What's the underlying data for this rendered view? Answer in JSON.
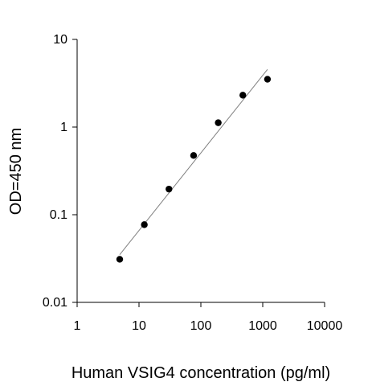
{
  "chart_data": {
    "type": "scatter",
    "title": "",
    "xlabel": "Human VSIG4 concentration (pg/ml)",
    "ylabel": "OD=450 nm",
    "x_scale": "log",
    "y_scale": "log",
    "xlim": [
      1,
      10000
    ],
    "ylim": [
      0.01,
      10
    ],
    "x_ticks": [
      1,
      10,
      100,
      1000,
      10000
    ],
    "x_tick_labels": [
      "1",
      "10",
      "100",
      "1000",
      "10000"
    ],
    "y_ticks": [
      0.01,
      0.1,
      1,
      10
    ],
    "y_tick_labels": [
      "0.01",
      "0.1",
      "1",
      "10"
    ],
    "grid": false,
    "legend": "none",
    "series": [
      {
        "x": [
          4.88,
          12.2,
          30.5,
          76.3,
          191,
          477,
          1193
        ],
        "y": [
          0.031,
          0.077,
          0.196,
          0.474,
          1.12,
          2.31,
          3.51
        ]
      }
    ],
    "fit_line": {
      "x": [
        4.88,
        1193
      ],
      "y": [
        0.035,
        4.55
      ]
    },
    "colors": {
      "points": "#000000",
      "line": "#808080",
      "axes": "#000000"
    }
  }
}
